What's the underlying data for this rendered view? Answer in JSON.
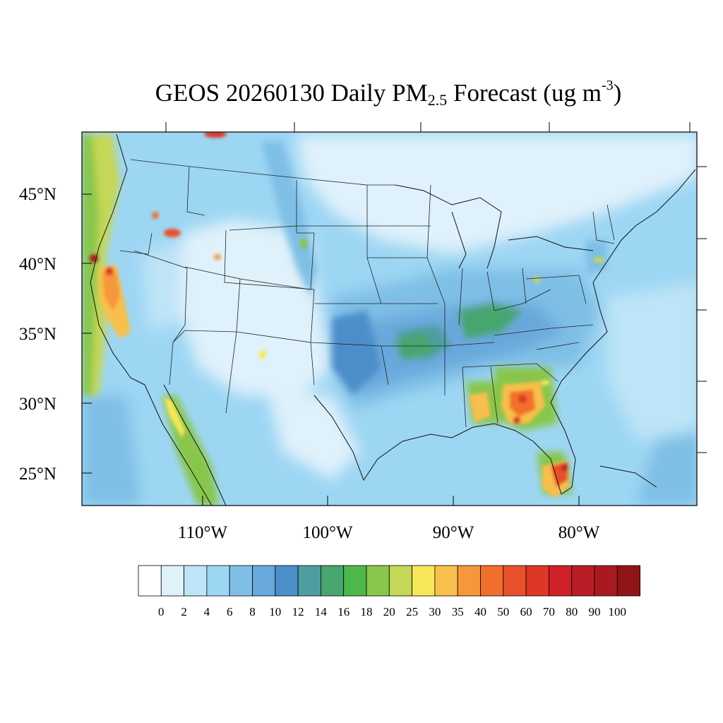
{
  "title": {
    "prefix": "GEOS 20260130 Daily PM",
    "subscript": "2.5",
    "middle": " Forecast (ug m",
    "superscript": "-3",
    "suffix": ")"
  },
  "map": {
    "region": "contiguous United States",
    "projection": "Lambert conformal",
    "lat_labels": [
      "45°N",
      "40°N",
      "35°N",
      "30°N",
      "25°N"
    ],
    "lon_labels": [
      "110°W",
      "100°W",
      "90°W",
      "80°W"
    ],
    "hotspots": [
      {
        "name": "northern California",
        "level": 100
      },
      {
        "name": "central California valley",
        "level": 40
      },
      {
        "name": "Idaho",
        "level": 50
      },
      {
        "name": "southern Georgia / northern Florida",
        "level": 60
      },
      {
        "name": "southern Florida",
        "level": 80
      },
      {
        "name": "southern Alabama",
        "level": 35
      }
    ]
  },
  "colorbar": {
    "labels": [
      "0",
      "2",
      "4",
      "6",
      "8",
      "10",
      "12",
      "14",
      "16",
      "18",
      "20",
      "25",
      "30",
      "35",
      "40",
      "50",
      "60",
      "70",
      "80",
      "90",
      "100"
    ],
    "colors": [
      "#ffffff",
      "#dff1fb",
      "#bde4f7",
      "#9dd6f3",
      "#7fbfe6",
      "#69a8dc",
      "#4b8ec9",
      "#4d9ea0",
      "#47a56e",
      "#4db84a",
      "#88c64c",
      "#c4d757",
      "#f7e759",
      "#f7bf4c",
      "#f5973a",
      "#f16f2c",
      "#e9502b",
      "#de3627",
      "#cf2128",
      "#b81c24",
      "#a81a20",
      "#8f1518"
    ]
  }
}
